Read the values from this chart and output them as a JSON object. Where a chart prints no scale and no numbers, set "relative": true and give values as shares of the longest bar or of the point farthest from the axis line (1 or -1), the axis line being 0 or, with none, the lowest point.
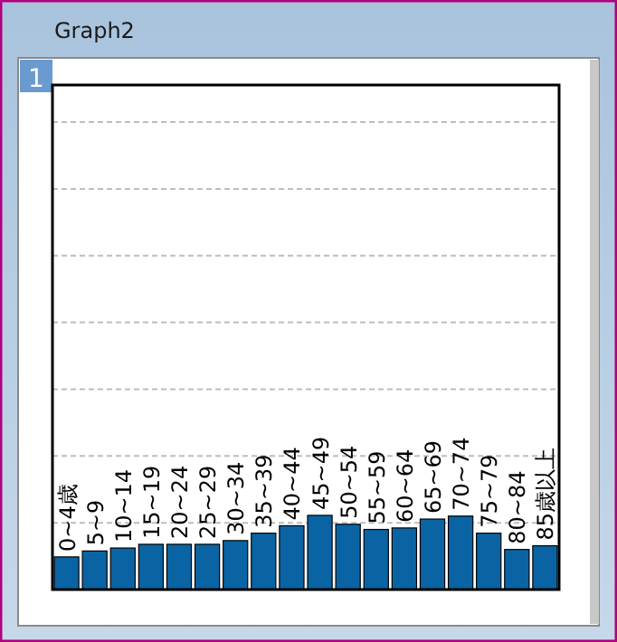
{
  "chart_data": {
    "type": "bar",
    "title": "Graph2",
    "annotations": [
      "1"
    ],
    "categories": [
      "0~4歳",
      "5~9",
      "10~14",
      "15~19",
      "20~24",
      "25~29",
      "30~34",
      "35~39",
      "40~44",
      "45~49",
      "50~54",
      "55~59",
      "60~64",
      "65~69",
      "70~74",
      "75~79",
      "80~84",
      "85歳以上"
    ],
    "values": [
      0.44,
      0.52,
      0.56,
      0.61,
      0.61,
      0.61,
      0.66,
      0.76,
      0.86,
      1,
      0.88,
      0.81,
      0.83,
      0.95,
      0.99,
      0.76,
      0.54,
      0.59
    ],
    "color": "#0a64a4",
    "relative": true,
    "ref_lines": [
      {
        "axis": "y",
        "value": 0.9,
        "color": "#bdbdbd",
        "line_style": "dashed"
      },
      {
        "axis": "y",
        "value": 1.8,
        "color": "#bdbdbd",
        "line_style": "dashed"
      },
      {
        "axis": "y",
        "value": 2.7,
        "color": "#bdbdbd",
        "line_style": "dashed"
      },
      {
        "axis": "y",
        "value": 3.6,
        "color": "#bdbdbd",
        "line_style": "dashed"
      },
      {
        "axis": "y",
        "value": 4.5,
        "color": "#bdbdbd",
        "line_style": "dashed"
      },
      {
        "axis": "y",
        "value": 5.4,
        "color": "#bdbdbd",
        "line_style": "dashed"
      },
      {
        "axis": "y",
        "value": 6.3,
        "color": "#bdbdbd",
        "line_style": "dashed"
      }
    ]
  }
}
